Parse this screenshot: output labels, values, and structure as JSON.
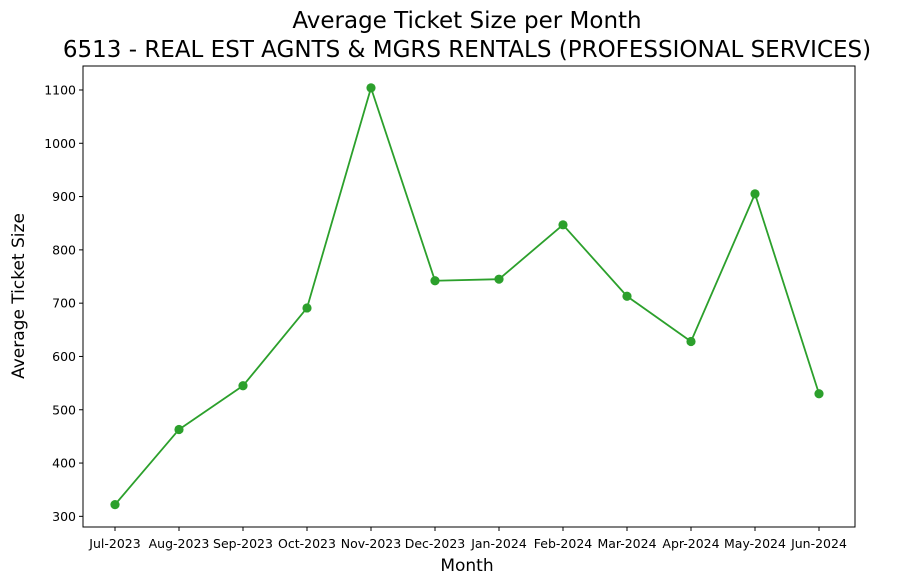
{
  "chart_data": {
    "type": "line",
    "title": "Average Ticket Size per Month",
    "subtitle": "6513 - REAL EST AGNTS & MGRS RENTALS (PROFESSIONAL SERVICES)",
    "xlabel": "Month",
    "ylabel": "Average Ticket Size",
    "categories": [
      "Jul-2023",
      "Aug-2023",
      "Sep-2023",
      "Oct-2023",
      "Nov-2023",
      "Dec-2023",
      "Jan-2024",
      "Feb-2024",
      "Mar-2024",
      "Apr-2024",
      "May-2024",
      "Jun-2024"
    ],
    "series": [
      {
        "values": [
          322,
          463,
          545,
          691,
          1104,
          742,
          745,
          847,
          713,
          628,
          905,
          530
        ],
        "color": "#2ca02c",
        "marker": "circle"
      }
    ],
    "yticks": [
      300,
      400,
      500,
      600,
      700,
      800,
      900,
      1000,
      1100
    ],
    "ylim": [
      280,
      1145
    ],
    "grid": false,
    "legend": "none"
  }
}
